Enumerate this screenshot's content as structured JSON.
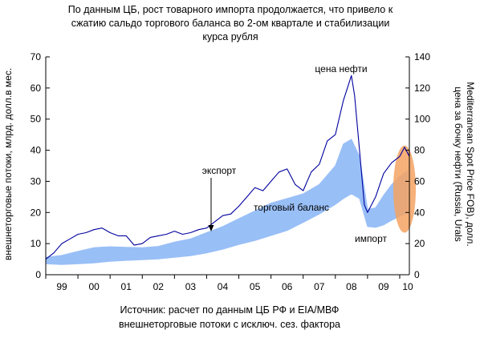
{
  "chart_data": {
    "type": "area",
    "title_lines": [
      "По данным ЦБ, рост товарного импорта продолжается, что привело к",
      "сжатию сальдо торгового баланса во 2-ом квартале и стабилизации",
      "курса рубля"
    ],
    "ylabel_left": "внешнеторговые потоки, млрд. долл.в мес.",
    "ylabel_right_lines": [
      "цена за бочку нефти (Russia, Urals",
      "Mediterranean Spot Price FOB), долл."
    ],
    "source_lines": [
      "Источник: расчет по данным ЦБ РФ и EIA/МВФ",
      "внешнеторговые потоки с исключ. сез. фактора"
    ],
    "x_categories": [
      "99",
      "00",
      "01",
      "02",
      "03",
      "04",
      "05",
      "06",
      "07",
      "08",
      "09",
      "10"
    ],
    "x_range": [
      1999.0,
      2010.3
    ],
    "ylim_left": [
      0,
      70
    ],
    "ylim_right": [
      0,
      140
    ],
    "yticks_left": [
      "0",
      "10",
      "20",
      "30",
      "40",
      "50",
      "60",
      "70"
    ],
    "yticks_right": [
      "0",
      "20",
      "40",
      "60",
      "80",
      "100",
      "120",
      "140"
    ],
    "annotations": {
      "oil": "цена нефти",
      "export": "экспорт",
      "balance": "торговый баланс",
      "import": "импорт"
    },
    "series": [
      {
        "name": "экспорт",
        "axis": "left",
        "x": [
          1999.0,
          1999.5,
          2000.0,
          2000.5,
          2001.0,
          2001.5,
          2002.0,
          2002.5,
          2003.0,
          2003.5,
          2004.0,
          2004.5,
          2005.0,
          2005.5,
          2006.0,
          2006.5,
          2007.0,
          2007.5,
          2008.0,
          2008.25,
          2008.5,
          2008.75,
          2009.0,
          2009.25,
          2009.5,
          2009.75,
          2010.0,
          2010.25
        ],
        "values": [
          5.6,
          6.2,
          7.5,
          8.7,
          9.0,
          8.8,
          8.7,
          9.1,
          10.5,
          11.5,
          13.5,
          15.5,
          18.0,
          20.5,
          23.0,
          24.5,
          26.0,
          29.0,
          35.0,
          42.0,
          43.5,
          38.0,
          21.0,
          21.5,
          25.5,
          29.0,
          31.5,
          33.5
        ]
      },
      {
        "name": "импорт",
        "axis": "left",
        "x": [
          1999.0,
          1999.5,
          2000.0,
          2000.5,
          2001.0,
          2001.5,
          2002.0,
          2002.5,
          2003.0,
          2003.5,
          2004.0,
          2004.5,
          2005.0,
          2005.5,
          2006.0,
          2006.5,
          2007.0,
          2007.5,
          2008.0,
          2008.25,
          2008.5,
          2008.75,
          2009.0,
          2009.25,
          2009.5,
          2009.75,
          2010.0,
          2010.25
        ],
        "values": [
          3.5,
          3.3,
          3.5,
          3.8,
          4.3,
          4.6,
          4.8,
          5.1,
          5.6,
          6.1,
          7.0,
          8.2,
          9.7,
          11.0,
          12.6,
          14.2,
          16.8,
          19.5,
          22.6,
          24.5,
          26.0,
          24.5,
          15.5,
          15.2,
          16.0,
          17.5,
          18.8,
          20.0
        ]
      },
      {
        "name": "цена нефти",
        "axis": "right",
        "x": [
          1999.0,
          1999.25,
          1999.5,
          1999.75,
          2000.0,
          2000.25,
          2000.5,
          2000.75,
          2001.0,
          2001.25,
          2001.5,
          2001.75,
          2002.0,
          2002.25,
          2002.5,
          2002.75,
          2003.0,
          2003.25,
          2003.5,
          2003.75,
          2004.0,
          2004.25,
          2004.5,
          2004.75,
          2005.0,
          2005.25,
          2005.5,
          2005.75,
          2006.0,
          2006.25,
          2006.5,
          2006.75,
          2007.0,
          2007.25,
          2007.5,
          2007.75,
          2008.0,
          2008.25,
          2008.5,
          2008.6,
          2008.75,
          2008.9,
          2009.0,
          2009.25,
          2009.5,
          2009.75,
          2010.0,
          2010.15,
          2010.3
        ],
        "values": [
          10,
          14,
          20,
          23,
          26,
          27,
          29,
          30,
          27,
          25,
          25,
          19,
          20,
          24,
          25,
          26,
          28,
          26,
          27,
          29,
          30,
          34,
          38,
          39,
          44,
          50,
          56,
          54,
          60,
          66,
          68,
          58,
          54,
          66,
          71,
          86,
          90,
          112,
          128,
          115,
          80,
          45,
          40,
          50,
          65,
          72,
          76,
          82,
          76
        ]
      }
    ],
    "highlight": {
      "label": "",
      "x_center": 2010.15,
      "y_center_left": 27.5,
      "x_radius": 0.35,
      "y_radius_left": 14,
      "color": "#f4a262"
    },
    "colors": {
      "band_fill": "#99bff7",
      "oil_line": "#00009e",
      "highlight": "#f4a262",
      "axis": "#000000"
    }
  }
}
